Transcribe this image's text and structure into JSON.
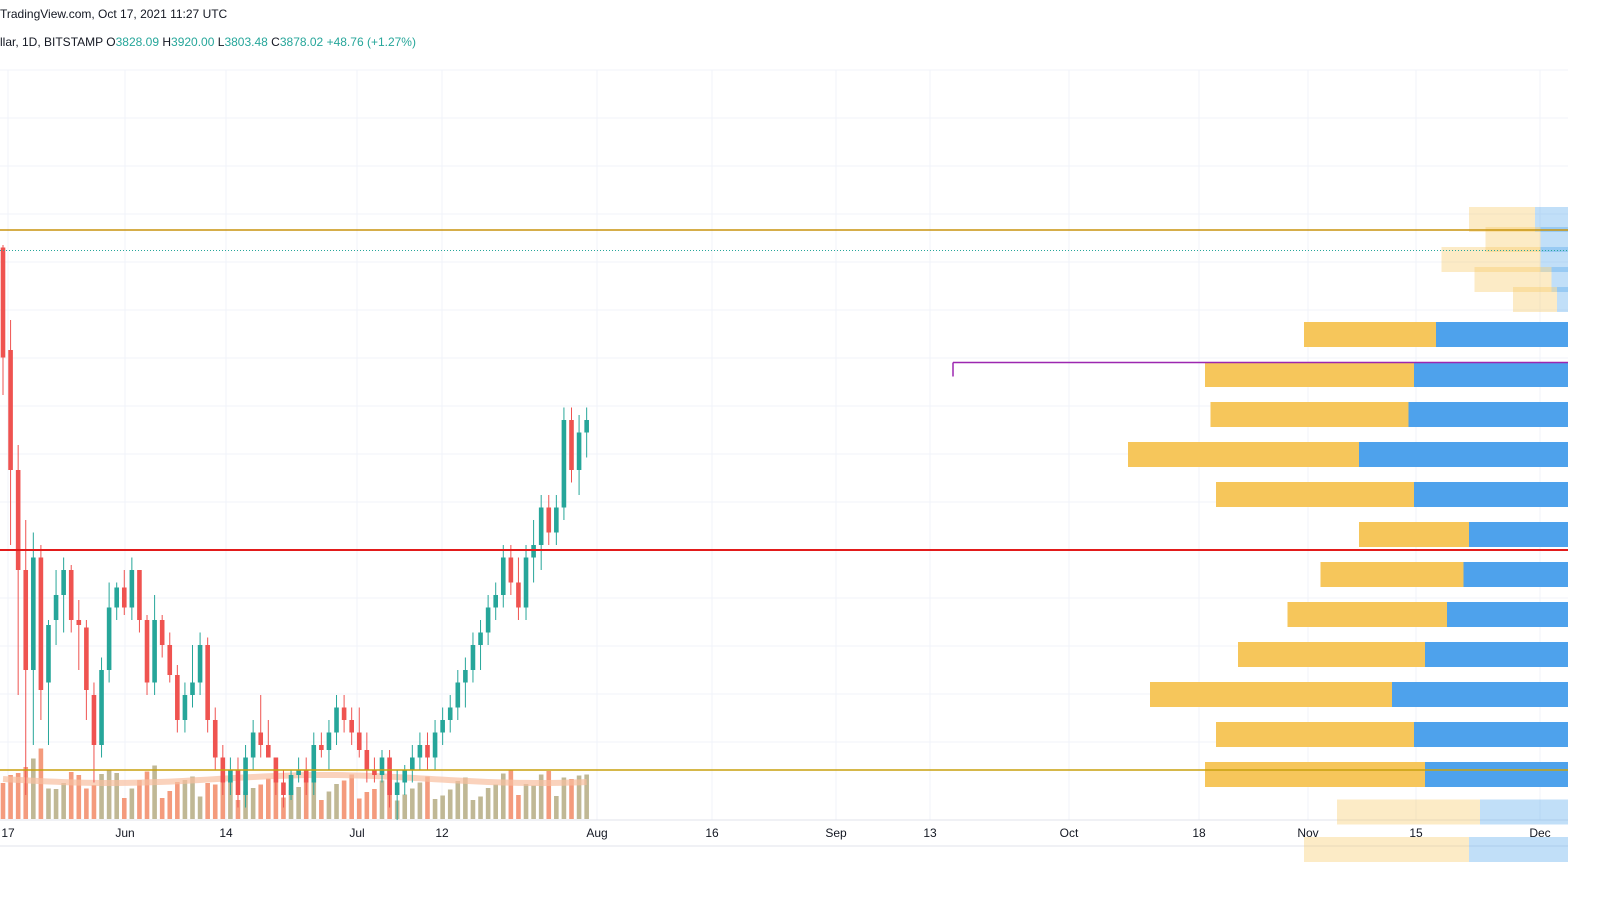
{
  "header": {
    "source": "TradingView.com, Oct 17, 2021 11:27 UTC",
    "symbol": "llar, 1D, BITSTAMP",
    "open_label": "O",
    "open": "3828.09",
    "high_label": "H",
    "high": "3920.00",
    "low_label": "L",
    "low": "3803.48",
    "close_label": "C",
    "close": "3878.02",
    "change": "+48.76 (+1.27%)"
  },
  "colors": {
    "up": "#26a69a",
    "down": "#ef5350",
    "vol_up": "#b9b08a",
    "vol_down": "#f3906f",
    "vol_ma": "#f8bfa0",
    "resistance": "#c8930e",
    "support": "#c8a10e",
    "pivot": "#e21b1b",
    "local_high": "#9c27b0",
    "vp_up": "#f6c65b",
    "vp_down": "#4ea2ec",
    "grid": "#f0f3fa"
  },
  "chart_data": {
    "type": "candlestick",
    "price_range": [
      1600,
      4600
    ],
    "x_ticks": [
      "17",
      "Jun",
      "14",
      "Jul",
      "12",
      "Aug",
      "16",
      "Sep",
      "13",
      "Oct",
      "18",
      "Nov",
      "15",
      "Dec"
    ],
    "horizontal_lines": {
      "resistance": 3960,
      "last_price": 3878,
      "local_high": 3430,
      "pivot": 2680,
      "support": 1800
    },
    "candles": [
      [
        3890,
        3900,
        3300,
        3450
      ],
      [
        3480,
        3600,
        2700,
        3000
      ],
      [
        3000,
        3100,
        2100,
        2600
      ],
      [
        2600,
        2800,
        1700,
        2200
      ],
      [
        2200,
        2750,
        1900,
        2650
      ],
      [
        2650,
        2700,
        2000,
        2120
      ],
      [
        2150,
        2400,
        1900,
        2380
      ],
      [
        2400,
        2600,
        2300,
        2500
      ],
      [
        2500,
        2650,
        2350,
        2600
      ],
      [
        2600,
        2620,
        2350,
        2400
      ],
      [
        2400,
        2480,
        2200,
        2380
      ],
      [
        2370,
        2400,
        2000,
        2120
      ],
      [
        2100,
        2150,
        1750,
        1900
      ],
      [
        1900,
        2250,
        1850,
        2200
      ],
      [
        2200,
        2550,
        2150,
        2450
      ],
      [
        2450,
        2550,
        2400,
        2530
      ],
      [
        2530,
        2600,
        2420,
        2450
      ],
      [
        2450,
        2650,
        2400,
        2600
      ],
      [
        2600,
        2600,
        2350,
        2400
      ],
      [
        2400,
        2420,
        2100,
        2150
      ],
      [
        2150,
        2500,
        2100,
        2400
      ],
      [
        2400,
        2420,
        2250,
        2300
      ],
      [
        2300,
        2350,
        2150,
        2180
      ],
      [
        2180,
        2220,
        1950,
        2000
      ],
      [
        2000,
        2150,
        1950,
        2100
      ],
      [
        2100,
        2300,
        2050,
        2150
      ],
      [
        2150,
        2350,
        2100,
        2300
      ],
      [
        2300,
        2330,
        1950,
        2000
      ],
      [
        2000,
        2050,
        1800,
        1850
      ],
      [
        1850,
        1900,
        1700,
        1750
      ],
      [
        1750,
        1850,
        1700,
        1800
      ],
      [
        1800,
        1850,
        1650,
        1700
      ],
      [
        1700,
        1900,
        1650,
        1850
      ],
      [
        1850,
        2000,
        1800,
        1950
      ],
      [
        1950,
        2100,
        1850,
        1900
      ],
      [
        1900,
        2000,
        1850,
        1850
      ],
      [
        1850,
        1850,
        1700,
        1750
      ],
      [
        1750,
        1800,
        1650,
        1700
      ],
      [
        1700,
        1800,
        1680,
        1780
      ],
      [
        1780,
        1850,
        1750,
        1800
      ],
      [
        1800,
        1850,
        1700,
        1750
      ],
      [
        1750,
        1950,
        1700,
        1900
      ],
      [
        1900,
        1950,
        1850,
        1880
      ],
      [
        1880,
        2000,
        1800,
        1950
      ],
      [
        1950,
        2100,
        1900,
        2050
      ],
      [
        2050,
        2100,
        1950,
        2000
      ],
      [
        2000,
        2050,
        1900,
        1950
      ],
      [
        1950,
        2050,
        1850,
        1880
      ],
      [
        1880,
        1950,
        1750,
        1800
      ],
      [
        1800,
        1850,
        1750,
        1780
      ],
      [
        1780,
        1880,
        1750,
        1850
      ],
      [
        1850,
        1880,
        1650,
        1700
      ],
      [
        1700,
        1800,
        1600,
        1750
      ],
      [
        1750,
        1820,
        1700,
        1800
      ],
      [
        1800,
        1900,
        1750,
        1850
      ],
      [
        1850,
        1950,
        1800,
        1900
      ],
      [
        1900,
        1950,
        1800,
        1850
      ],
      [
        1850,
        2000,
        1800,
        1950
      ],
      [
        1950,
        2050,
        1900,
        2000
      ],
      [
        2000,
        2100,
        1950,
        2050
      ],
      [
        2050,
        2200,
        2000,
        2150
      ],
      [
        2150,
        2250,
        2050,
        2200
      ],
      [
        2200,
        2350,
        2150,
        2300
      ],
      [
        2300,
        2400,
        2200,
        2350
      ],
      [
        2350,
        2500,
        2300,
        2450
      ],
      [
        2450,
        2550,
        2400,
        2500
      ],
      [
        2500,
        2700,
        2450,
        2650
      ],
      [
        2650,
        2700,
        2500,
        2550
      ],
      [
        2550,
        2650,
        2400,
        2450
      ],
      [
        2450,
        2700,
        2400,
        2650
      ],
      [
        2650,
        2800,
        2550,
        2700
      ],
      [
        2700,
        2900,
        2600,
        2850
      ],
      [
        2850,
        2900,
        2700,
        2750
      ],
      [
        2750,
        2900,
        2700,
        2850
      ],
      [
        2850,
        3250,
        2800,
        3200
      ],
      [
        3200,
        3250,
        2950,
        3000
      ],
      [
        3000,
        3220,
        2900,
        3150
      ],
      [
        3150,
        3250,
        3050,
        3200
      ]
    ],
    "volume_profile": [
      {
        "price": 4000,
        "up": 0.6,
        "down": 0.3,
        "faded": true
      },
      {
        "price": 3920,
        "up": 0.5,
        "down": 0.25,
        "faded": true
      },
      {
        "price": 3840,
        "up": 0.9,
        "down": 0.25,
        "faded": true
      },
      {
        "price": 3760,
        "up": 0.7,
        "down": 0.15,
        "faded": true
      },
      {
        "price": 3680,
        "up": 0.4,
        "down": 0.1,
        "faded": true
      },
      {
        "price": 3540,
        "up": 1.2,
        "down": 1.2,
        "faded": false
      },
      {
        "price": 3380,
        "up": 1.9,
        "down": 1.4,
        "faded": false
      },
      {
        "price": 3220,
        "up": 1.8,
        "down": 1.45,
        "faded": false
      },
      {
        "price": 3060,
        "up": 2.1,
        "down": 1.9,
        "faded": false
      },
      {
        "price": 2900,
        "up": 1.8,
        "down": 1.4,
        "faded": false
      },
      {
        "price": 2740,
        "up": 1.0,
        "down": 0.9,
        "faded": false
      },
      {
        "price": 2580,
        "up": 1.3,
        "down": 0.95,
        "faded": false
      },
      {
        "price": 2420,
        "up": 1.45,
        "down": 1.1,
        "faded": false
      },
      {
        "price": 2260,
        "up": 1.7,
        "down": 1.3,
        "faded": false
      },
      {
        "price": 2100,
        "up": 2.2,
        "down": 1.6,
        "faded": false
      },
      {
        "price": 1940,
        "up": 1.8,
        "down": 1.4,
        "faded": false
      },
      {
        "price": 1780,
        "up": 2.0,
        "down": 1.3,
        "faded": false
      },
      {
        "price": 1630,
        "up": 1.3,
        "down": 0.8,
        "faded": true
      },
      {
        "price": 1480,
        "up": 1.5,
        "down": 0.9,
        "faded": true
      }
    ]
  }
}
